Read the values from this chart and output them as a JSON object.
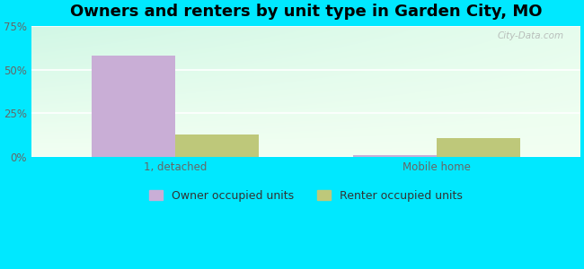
{
  "title": "Owners and renters by unit type in Garden City, MO",
  "categories": [
    "1, detached",
    "Mobile home"
  ],
  "series": [
    {
      "name": "Owner occupied units",
      "values": [
        58.0,
        1.0
      ],
      "color": "#c9aed6"
    },
    {
      "name": "Renter occupied units",
      "values": [
        13.0,
        11.0
      ],
      "color": "#bec87a"
    }
  ],
  "ylim": [
    0,
    75
  ],
  "yticks": [
    0,
    25,
    50,
    75
  ],
  "ytick_labels": [
    "0%",
    "25%",
    "50%",
    "75%"
  ],
  "background_color": "#00e8ff",
  "watermark": "City-Data.com",
  "bar_width": 0.32,
  "title_fontsize": 13,
  "axis_fontsize": 8.5,
  "legend_fontsize": 9
}
